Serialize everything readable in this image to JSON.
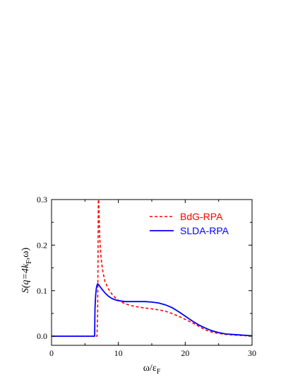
{
  "chart_data": {
    "type": "line",
    "xlabel": {
      "base": "ω/ε",
      "sub": "F"
    },
    "ylabel": {
      "pre": "S(q=4k",
      "sub": "F",
      "post": ",ω)"
    },
    "xlim": [
      0,
      30
    ],
    "ylim": [
      -0.02,
      0.3
    ],
    "x_ticks": [
      0,
      10,
      20,
      30
    ],
    "x_tick_labels": [
      "0",
      "10",
      "20",
      "30"
    ],
    "y_ticks": [
      0.0,
      0.1,
      0.2,
      0.3
    ],
    "y_tick_labels": [
      "0.0",
      "0.1",
      "0.2",
      "0.3"
    ],
    "grid": false,
    "legend_position": "top-right",
    "series": [
      {
        "name": "BdG-RPA",
        "color": "#ff0000",
        "dash": "dashed",
        "x": [
          0,
          6.8,
          6.9,
          6.95,
          7.0,
          7.05,
          7.1,
          7.2,
          7.3,
          7.4,
          7.5,
          7.7,
          8.0,
          8.5,
          9.0,
          9.5,
          10.0,
          11.0,
          12.0,
          13.0,
          14.0,
          15.0,
          16.0,
          17.0,
          18.0,
          19.0,
          20.0,
          21.0,
          22.0,
          23.0,
          24.0,
          25.0,
          26.0,
          27.0,
          28.0,
          29.0,
          30.0
        ],
        "y": [
          0.0,
          0.0,
          0.05,
          0.16,
          0.3,
          0.3,
          0.27,
          0.22,
          0.195,
          0.175,
          0.16,
          0.14,
          0.12,
          0.104,
          0.093,
          0.085,
          0.079,
          0.071,
          0.067,
          0.064,
          0.062,
          0.06,
          0.058,
          0.055,
          0.05,
          0.044,
          0.037,
          0.03,
          0.022,
          0.014,
          0.009,
          0.006,
          0.004,
          0.003,
          0.002,
          0.001,
          0.001
        ]
      },
      {
        "name": "SLDA-RPA",
        "color": "#0000ff",
        "dash": "solid",
        "x": [
          0,
          6.45,
          6.5,
          6.6,
          6.7,
          6.8,
          6.9,
          7.0,
          7.2,
          7.5,
          8.0,
          8.5,
          9.0,
          9.5,
          10.0,
          11.0,
          12.0,
          13.0,
          14.0,
          15.0,
          16.0,
          17.0,
          18.0,
          19.0,
          20.0,
          21.0,
          22.0,
          23.0,
          24.0,
          25.0,
          26.0,
          27.0,
          28.0,
          29.0,
          30.0
        ],
        "y": [
          0.0,
          0.0,
          0.06,
          0.09,
          0.105,
          0.112,
          0.115,
          0.114,
          0.11,
          0.104,
          0.095,
          0.088,
          0.083,
          0.08,
          0.078,
          0.076,
          0.076,
          0.076,
          0.076,
          0.075,
          0.073,
          0.069,
          0.063,
          0.054,
          0.044,
          0.034,
          0.025,
          0.018,
          0.012,
          0.008,
          0.005,
          0.004,
          0.003,
          0.002,
          0.001
        ]
      }
    ]
  }
}
